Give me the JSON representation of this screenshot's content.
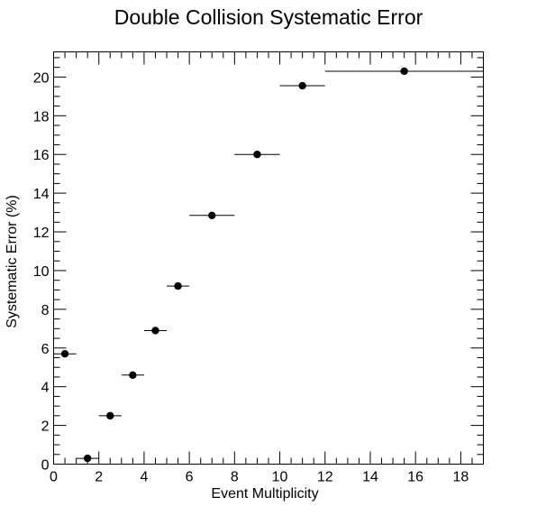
{
  "chart_data": {
    "type": "scatter",
    "title": "Double Collision Systematic Error",
    "xlabel": "Event Multiplicity",
    "ylabel": "Systematic Error (%)",
    "xlim": [
      0,
      19
    ],
    "ylim": [
      0,
      21.3
    ],
    "x_ticks": [
      0,
      2,
      4,
      6,
      8,
      10,
      12,
      14,
      16,
      18
    ],
    "y_ticks": [
      0,
      2,
      4,
      6,
      8,
      10,
      12,
      14,
      16,
      18,
      20
    ],
    "grid": false,
    "legend": "none",
    "marker_color": "#000000",
    "points": [
      {
        "x": 0.5,
        "y": 5.7,
        "x_low": 0,
        "x_high": 1
      },
      {
        "x": 1.5,
        "y": 0.3,
        "x_low": 1,
        "x_high": 2
      },
      {
        "x": 2.5,
        "y": 2.5,
        "x_low": 2,
        "x_high": 3
      },
      {
        "x": 3.5,
        "y": 4.6,
        "x_low": 3,
        "x_high": 4
      },
      {
        "x": 4.5,
        "y": 6.9,
        "x_low": 4,
        "x_high": 5
      },
      {
        "x": 5.5,
        "y": 9.2,
        "x_low": 5,
        "x_high": 6
      },
      {
        "x": 7,
        "y": 12.85,
        "x_low": 6,
        "x_high": 8
      },
      {
        "x": 9,
        "y": 16.0,
        "x_low": 8,
        "x_high": 10
      },
      {
        "x": 11,
        "y": 19.55,
        "x_low": 10,
        "x_high": 12
      },
      {
        "x": 15.5,
        "y": 20.3,
        "x_low": 12,
        "x_high": 19
      }
    ]
  }
}
